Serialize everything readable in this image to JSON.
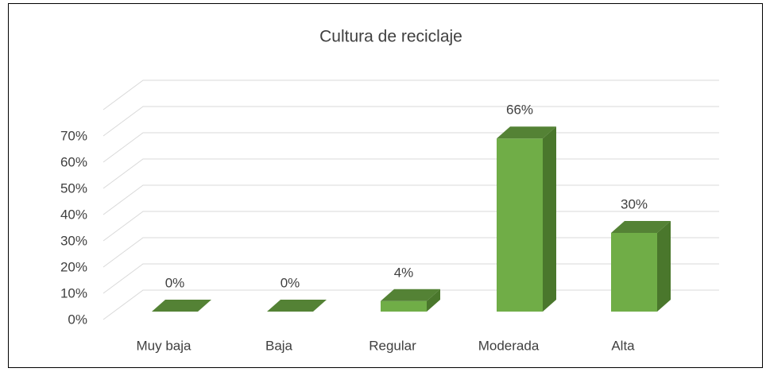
{
  "chart_data": {
    "type": "bar3d",
    "title": "Cultura de reciclaje",
    "categories": [
      "Muy baja",
      "Baja",
      "Regular",
      "Moderada",
      "Alta"
    ],
    "values": [
      0,
      0,
      4,
      66,
      30
    ],
    "value_labels": [
      "0%",
      "0%",
      "4%",
      "66%",
      "30%"
    ],
    "color": "#70ad47",
    "ylim": [
      0,
      80
    ],
    "yticks": [
      {
        "value": 0,
        "label": "0%"
      },
      {
        "value": 10,
        "label": "10%"
      },
      {
        "value": 20,
        "label": "20%"
      },
      {
        "value": 30,
        "label": "30%"
      },
      {
        "value": 40,
        "label": "40%"
      },
      {
        "value": 50,
        "label": "50%"
      },
      {
        "value": 60,
        "label": "60%"
      },
      {
        "value": 70,
        "label": "70%"
      }
    ],
    "grid": true
  }
}
